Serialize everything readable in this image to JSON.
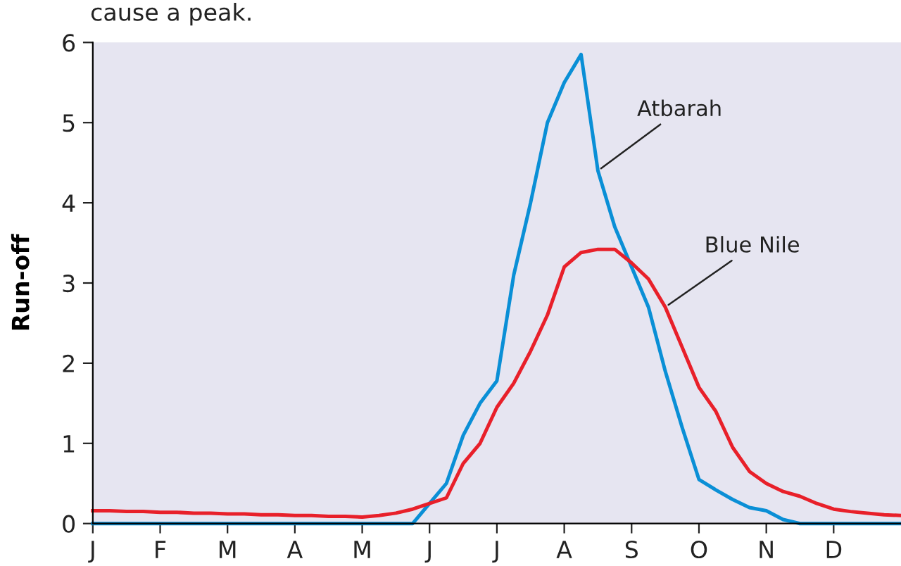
{
  "chart_data": {
    "type": "line",
    "ylabel": "Run-off",
    "annotations": [
      "cause a peak."
    ],
    "ylim": [
      0,
      6
    ],
    "yticks": [
      0,
      1,
      2,
      3,
      4,
      5,
      6
    ],
    "categories": [
      "J",
      null,
      null,
      null,
      "F",
      null,
      null,
      null,
      "M",
      null,
      null,
      null,
      "A",
      null,
      null,
      null,
      "M",
      null,
      null,
      null,
      "J",
      null,
      null,
      null,
      "J",
      null,
      null,
      null,
      "A",
      null,
      null,
      null,
      "S",
      null,
      null,
      null,
      "O",
      null,
      null,
      null,
      "N",
      null,
      null,
      null,
      "D",
      null,
      null,
      null,
      null
    ],
    "grid": false,
    "legend": false,
    "series": [
      {
        "name": "Atbarah",
        "color": "#0a8fd6",
        "values": [
          0,
          0,
          0,
          0,
          0,
          0,
          0,
          0,
          0,
          0,
          0,
          0,
          0,
          0,
          0,
          0,
          0,
          0,
          0,
          0,
          0.25,
          0.5,
          1.1,
          1.5,
          1.78,
          3.1,
          4.0,
          5.0,
          5.5,
          5.85,
          4.4,
          3.7,
          3.2,
          2.7,
          1.9,
          1.2,
          0.55,
          0.42,
          0.3,
          0.2,
          0.16,
          0.05,
          0,
          0,
          0,
          0,
          0,
          0,
          0
        ]
      },
      {
        "name": "Blue Nile",
        "color": "#e8202a",
        "values": [
          0.16,
          0.16,
          0.15,
          0.15,
          0.14,
          0.14,
          0.13,
          0.13,
          0.12,
          0.12,
          0.11,
          0.11,
          0.1,
          0.1,
          0.09,
          0.09,
          0.08,
          0.1,
          0.13,
          0.18,
          0.25,
          0.32,
          0.75,
          1.0,
          1.45,
          1.75,
          2.15,
          2.6,
          3.2,
          3.38,
          3.42,
          3.42,
          3.25,
          3.05,
          2.7,
          2.2,
          1.7,
          1.4,
          0.95,
          0.65,
          0.5,
          0.4,
          0.34,
          0.25,
          0.18,
          0.15,
          0.13,
          0.11,
          0.1
        ]
      }
    ]
  }
}
